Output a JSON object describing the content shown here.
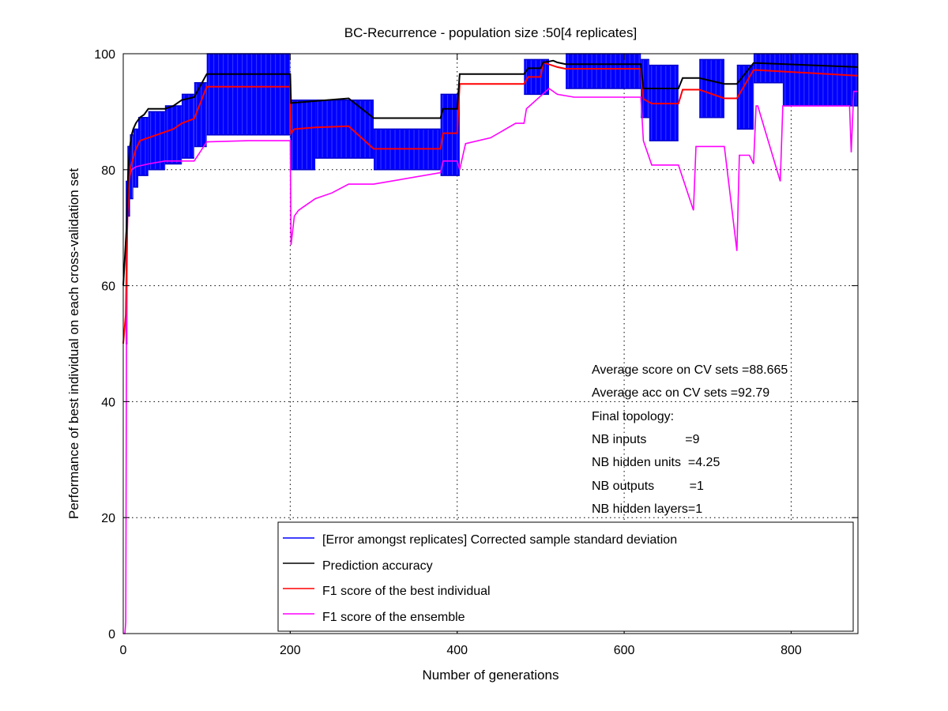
{
  "chart_data": {
    "type": "line",
    "title": "BC-Recurrence - population size :50[4 replicates]",
    "xlabel": "Number of generations",
    "ylabel": "Performance of best individual on each cross-validation set",
    "xlim": [
      0,
      880
    ],
    "ylim": [
      0,
      100
    ],
    "xticks": [
      0,
      200,
      400,
      600,
      800
    ],
    "yticks": [
      0,
      20,
      40,
      60,
      80,
      100
    ],
    "grid": true,
    "legend_position": "bottom-right",
    "annotations": [
      "Average score on CV sets =88.665",
      "Average acc on CV sets =92.79",
      "Final topology:",
      "NB inputs           =9",
      "NB hidden units  =4.25",
      "NB outputs          =1",
      "NB hidden layers=1"
    ],
    "series": [
      {
        "name": "[Error amongst replicates] Corrected sample standard deviation",
        "color": "#0000ff",
        "kind": "errorbars",
        "segments": [
          {
            "x": [
              3,
              5
            ],
            "low": 50,
            "high": 78
          },
          {
            "x": [
              5,
              8
            ],
            "low": 72,
            "high": 84
          },
          {
            "x": [
              8,
              12
            ],
            "low": 75,
            "high": 86
          },
          {
            "x": [
              12,
              18
            ],
            "low": 77,
            "high": 87
          },
          {
            "x": [
              18,
              30
            ],
            "low": 79,
            "high": 89
          },
          {
            "x": [
              30,
              50
            ],
            "low": 80,
            "high": 90
          },
          {
            "x": [
              50,
              70
            ],
            "low": 81,
            "high": 91
          },
          {
            "x": [
              70,
              85
            ],
            "low": 82,
            "high": 93
          },
          {
            "x": [
              85,
              100
            ],
            "low": 84,
            "high": 95
          },
          {
            "x": [
              100,
              200
            ],
            "low": 86,
            "high": 100
          },
          {
            "x": [
              200,
              230
            ],
            "low": 80,
            "high": 92
          },
          {
            "x": [
              230,
              300
            ],
            "low": 82,
            "high": 92
          },
          {
            "x": [
              300,
              380
            ],
            "low": 80,
            "high": 87
          },
          {
            "x": [
              380,
              403
            ],
            "low": 79,
            "high": 93
          },
          {
            "x": [
              480,
              510
            ],
            "low": 93,
            "high": 99
          },
          {
            "x": [
              530,
              620
            ],
            "low": 94,
            "high": 100
          },
          {
            "x": [
              620,
              630
            ],
            "low": 89,
            "high": 99
          },
          {
            "x": [
              630,
              665
            ],
            "low": 85,
            "high": 98
          },
          {
            "x": [
              690,
              720
            ],
            "low": 89,
            "high": 99
          },
          {
            "x": [
              735,
              755
            ],
            "low": 87,
            "high": 98
          },
          {
            "x": [
              755,
              790
            ],
            "low": 95,
            "high": 100
          },
          {
            "x": [
              790,
              880
            ],
            "low": 91,
            "high": 100
          }
        ]
      },
      {
        "name": "Prediction accuracy",
        "color": "#000000",
        "x": [
          0,
          4,
          6,
          8,
          10,
          12,
          15,
          20,
          25,
          30,
          50,
          60,
          70,
          85,
          100,
          200,
          201,
          270,
          300,
          380,
          383,
          400,
          403,
          480,
          485,
          500,
          503,
          515,
          520,
          530,
          620,
          623,
          665,
          670,
          690,
          720,
          735,
          755,
          758,
          880
        ],
        "y": [
          60,
          70,
          80,
          84,
          86,
          87,
          88,
          89,
          89.5,
          90.5,
          90.5,
          91,
          92,
          92.5,
          96.5,
          96.5,
          91.5,
          92.3,
          88.9,
          88.9,
          90.5,
          90.5,
          96.5,
          96.5,
          97.5,
          97.5,
          98.5,
          98.8,
          98.5,
          98.2,
          98.2,
          94,
          94,
          95.8,
          95.8,
          94.8,
          94.8,
          98.4,
          98.4,
          97.7
        ]
      },
      {
        "name": "F1 score of the best individual",
        "color": "#ff0000",
        "x": [
          0,
          3,
          5,
          7,
          9,
          12,
          15,
          20,
          30,
          50,
          60,
          70,
          85,
          100,
          200,
          201,
          205,
          230,
          270,
          300,
          380,
          383,
          400,
          403,
          480,
          485,
          500,
          503,
          520,
          530,
          620,
          623,
          633,
          665,
          670,
          690,
          720,
          735,
          755,
          758,
          880
        ],
        "y": [
          50,
          55,
          72,
          78,
          80.5,
          82,
          83.5,
          85,
          85.5,
          86.5,
          87,
          88,
          88.8,
          94.3,
          94.3,
          86.3,
          87,
          87.3,
          87.5,
          83.6,
          83.6,
          86.3,
          86.3,
          94.8,
          94.8,
          96,
          96,
          98.5,
          97.7,
          97.4,
          97.4,
          92.2,
          91.4,
          91.4,
          93.8,
          93.8,
          92.3,
          92.3,
          97.2,
          97.2,
          96.2
        ]
      },
      {
        "name": "F1 score of the ensemble",
        "color": "#ff00ff",
        "x": [
          0,
          2,
          3,
          4,
          5,
          6,
          8,
          10,
          15,
          30,
          50,
          70,
          85,
          100,
          150,
          200,
          201,
          205,
          210,
          220,
          230,
          250,
          270,
          300,
          380,
          383,
          400,
          403,
          410,
          440,
          470,
          480,
          483,
          510,
          520,
          540,
          620,
          623,
          633,
          665,
          683,
          686,
          700,
          720,
          735,
          738,
          750,
          755,
          758,
          760,
          787,
          790,
          870,
          872,
          875,
          880
        ],
        "y": [
          0,
          0,
          2,
          55,
          70,
          77,
          79,
          80,
          80.5,
          81,
          81.5,
          81.5,
          81.5,
          84.8,
          85,
          85,
          67,
          72,
          73,
          74,
          75,
          76,
          77.5,
          77.5,
          79.5,
          81.5,
          81.5,
          80,
          84.5,
          85.5,
          88,
          88,
          90.5,
          94,
          93,
          92.5,
          92.5,
          85,
          80.8,
          80.8,
          73,
          84,
          84,
          84,
          66,
          82.5,
          82.5,
          81,
          91,
          91,
          78,
          91,
          91,
          83,
          93.5,
          93.5
        ]
      }
    ]
  }
}
